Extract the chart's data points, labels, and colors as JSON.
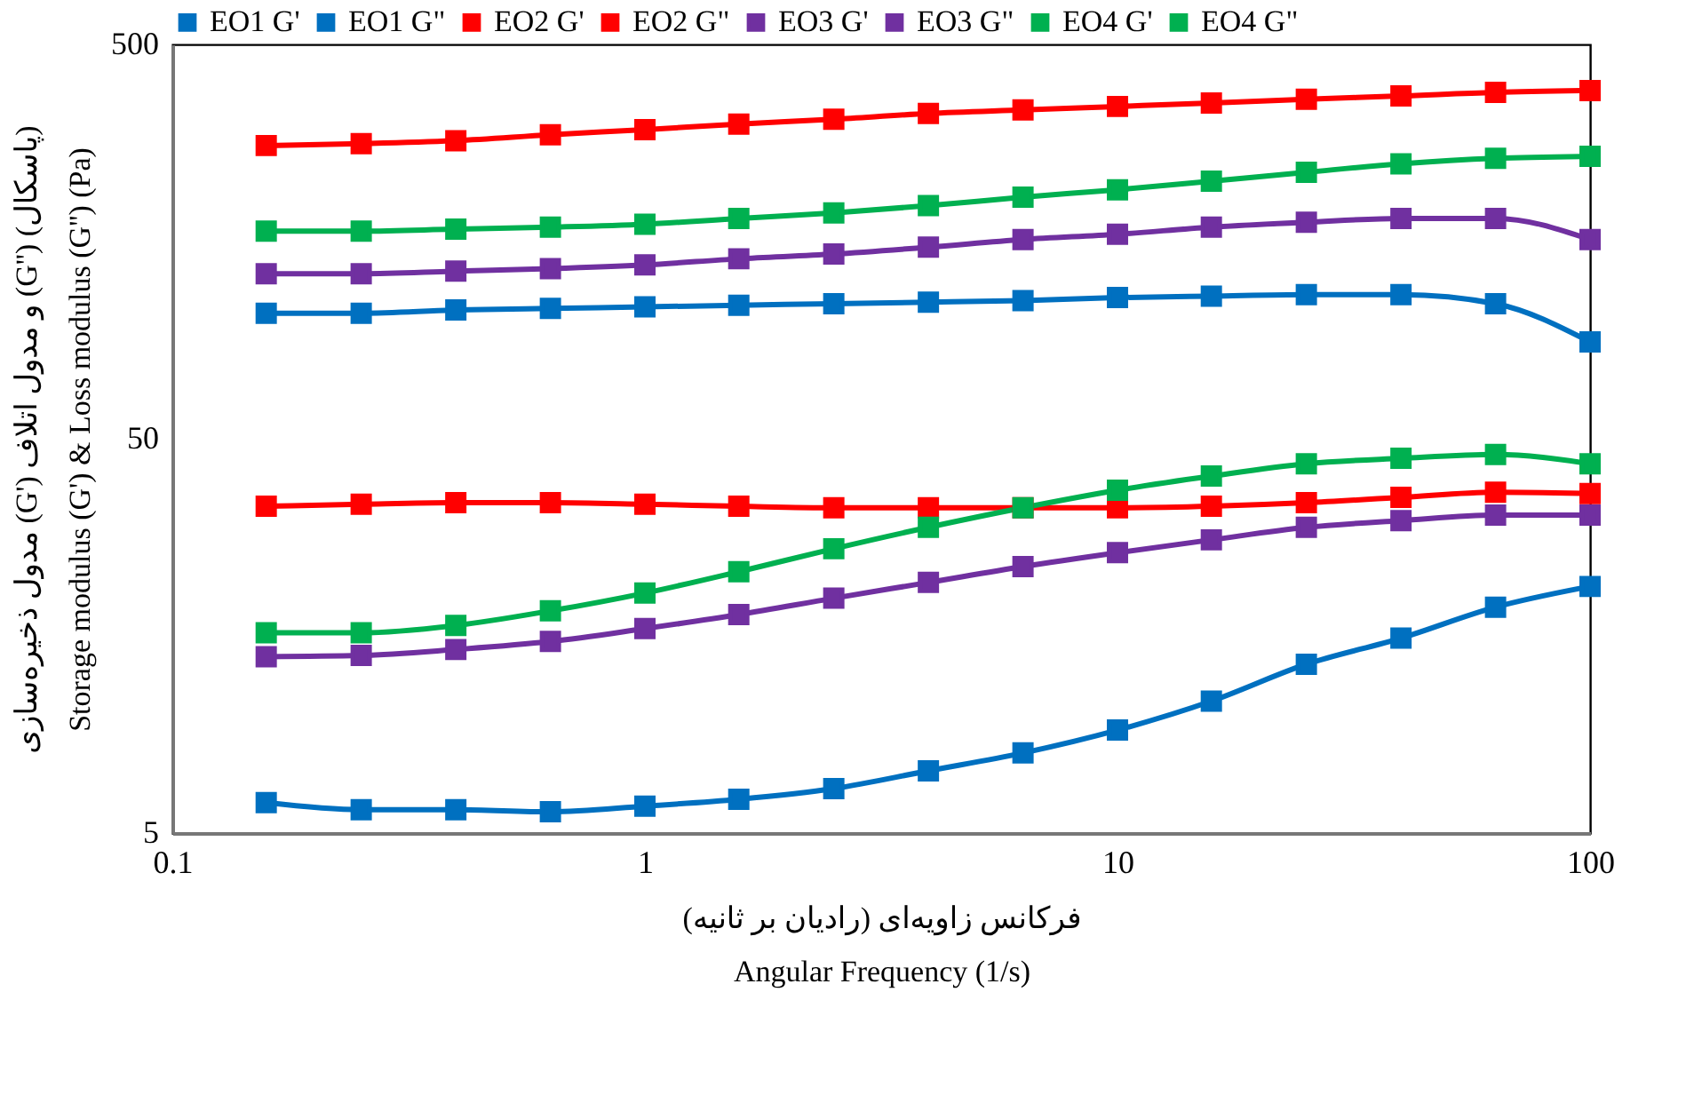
{
  "chart_data": {
    "type": "line",
    "xlabel": "فرکانس زاویه‌ای (رادیان بر ثانیه)\nAngular Frequency (1/s)",
    "ylabel": "مدول ذخیره‌سازی (G') و مدول اتلاف (G'') (پاسکال)\nStorage modulus (G') & Loss modulus (G'') (Pa)",
    "x": [
      0.158,
      0.251,
      0.398,
      0.631,
      1,
      1.58,
      2.51,
      3.98,
      6.31,
      10,
      15.8,
      25.1,
      39.8,
      63.1,
      100
    ],
    "series": [
      {
        "name": "EO1 G'",
        "color": "#0070c0",
        "values": [
          104,
          104,
          106,
          107,
          108,
          109,
          110,
          111,
          112,
          114,
          115,
          116,
          116,
          110,
          88
        ]
      },
      {
        "name": "EO1 G\"",
        "color": "#0070c0",
        "values": [
          5.97,
          5.73,
          5.73,
          5.66,
          5.85,
          6.09,
          6.48,
          7.19,
          7.98,
          9.12,
          10.8,
          13.4,
          15.6,
          18.7,
          21.1
        ]
      },
      {
        "name": "EO2 G'",
        "color": "#ff0000",
        "values": [
          277,
          280,
          285,
          295,
          304,
          314,
          323,
          334,
          341,
          348,
          355,
          363,
          370,
          378,
          382
        ]
      },
      {
        "name": "EO2 G\"",
        "color": "#ff0000",
        "values": [
          33.7,
          34.1,
          34.4,
          34.4,
          34.1,
          33.7,
          33.4,
          33.4,
          33.4,
          33.4,
          33.7,
          34.4,
          35.5,
          36.6,
          36.3
        ]
      },
      {
        "name": "EO3 G'",
        "color": "#7030a0",
        "values": [
          131,
          131,
          133,
          135,
          138,
          143,
          147,
          153,
          160,
          165,
          172,
          177,
          181,
          181,
          160
        ]
      },
      {
        "name": "EO3 G\"",
        "color": "#7030a0",
        "values": [
          14.0,
          14.1,
          14.6,
          15.3,
          16.5,
          17.9,
          19.7,
          21.6,
          23.7,
          25.7,
          27.7,
          29.8,
          31.0,
          32.0,
          32.0
        ]
      },
      {
        "name": "EO4 G'",
        "color": "#00b050",
        "values": [
          168,
          168,
          170,
          172,
          175,
          181,
          187,
          195,
          205,
          214,
          225,
          237,
          249,
          257,
          260
        ]
      },
      {
        "name": "EO4 G\"",
        "color": "#00b050",
        "values": [
          16.1,
          16.1,
          16.8,
          18.3,
          20.3,
          23.0,
          26.3,
          29.8,
          33.4,
          37.0,
          40.2,
          43.2,
          44.6,
          45.6,
          43.2
        ]
      }
    ],
    "log": "xy",
    "xlim": [
      0.1,
      100
    ],
    "ylim": [
      5,
      500
    ],
    "xticks": [
      0.1,
      1,
      10,
      100
    ],
    "yticks": [
      5,
      50,
      500
    ],
    "marker": "square",
    "line_style": "solid",
    "legend": "top",
    "grid": false
  }
}
